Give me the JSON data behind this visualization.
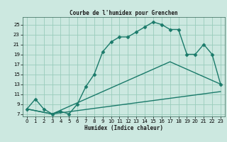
{
  "title": "Courbe de l'humidex pour Grenchen",
  "xlabel": "Humidex (Indice chaleur)",
  "xlim": [
    -0.5,
    23.5
  ],
  "ylim": [
    6.5,
    26.5
  ],
  "xticks": [
    0,
    1,
    2,
    3,
    4,
    5,
    6,
    7,
    8,
    9,
    10,
    11,
    12,
    13,
    14,
    15,
    16,
    17,
    18,
    19,
    20,
    21,
    22,
    23
  ],
  "yticks": [
    7,
    9,
    11,
    13,
    15,
    17,
    19,
    21,
    23,
    25
  ],
  "bg_color": "#cce8e0",
  "grid_color": "#99ccbb",
  "line_color": "#1a7a6a",
  "line1_x": [
    0,
    1,
    2,
    3,
    4,
    5,
    6,
    7,
    8,
    9,
    10,
    11,
    12,
    13,
    14,
    15,
    16,
    17,
    18,
    19,
    20,
    21,
    22,
    23
  ],
  "line1_y": [
    8,
    10,
    8,
    7,
    7.5,
    7,
    9,
    12.5,
    15,
    19.5,
    21.5,
    22.5,
    22.5,
    23.5,
    24.5,
    25.5,
    25,
    24,
    24,
    19,
    19,
    21,
    19,
    13
  ],
  "line2_x": [
    0,
    3,
    17,
    23
  ],
  "line2_y": [
    8,
    7,
    17.5,
    13
  ],
  "line3_x": [
    0,
    3,
    23
  ],
  "line3_y": [
    8,
    7,
    11.5
  ],
  "marker": "D",
  "markersize": 2.5,
  "linewidth": 1.0
}
